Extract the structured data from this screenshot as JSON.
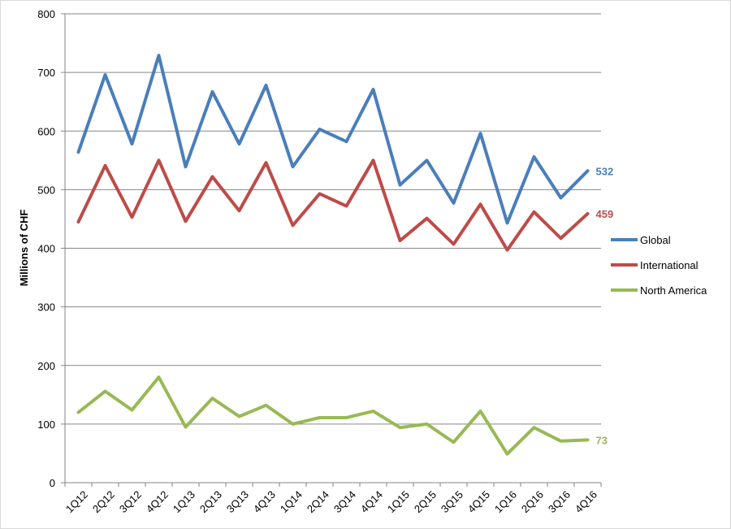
{
  "chart_data": {
    "type": "line",
    "ylabel": "Millions of CHF",
    "ylim": [
      0,
      800
    ],
    "yticks": [
      0,
      100,
      200,
      300,
      400,
      500,
      600,
      700,
      800
    ],
    "grid": "horizontal",
    "legend_position": "right",
    "categories": [
      "1Q12",
      "2Q12",
      "3Q12",
      "4Q12",
      "1Q13",
      "2Q13",
      "3Q13",
      "4Q13",
      "1Q14",
      "2Q14",
      "3Q14",
      "4Q14",
      "1Q15",
      "2Q15",
      "3Q15",
      "4Q15",
      "1Q16",
      "2Q16",
      "3Q16",
      "4Q16"
    ],
    "series": [
      {
        "name": "Global",
        "color": "#4a7ebb",
        "values": [
          564,
          696,
          578,
          729,
          539,
          667,
          578,
          678,
          539,
          603,
          582,
          671,
          508,
          550,
          477,
          596,
          443,
          556,
          486,
          532
        ],
        "end_label": "532"
      },
      {
        "name": "International",
        "color": "#be4b48",
        "values": [
          445,
          541,
          453,
          550,
          446,
          522,
          464,
          546,
          439,
          493,
          472,
          550,
          413,
          451,
          407,
          475,
          397,
          462,
          417,
          459
        ],
        "end_label": "459"
      },
      {
        "name": "North America",
        "color": "#98b954",
        "values": [
          120,
          156,
          124,
          180,
          95,
          144,
          113,
          132,
          100,
          111,
          111,
          122,
          94,
          100,
          69,
          122,
          49,
          94,
          71,
          73
        ],
        "end_label": "73"
      }
    ]
  }
}
